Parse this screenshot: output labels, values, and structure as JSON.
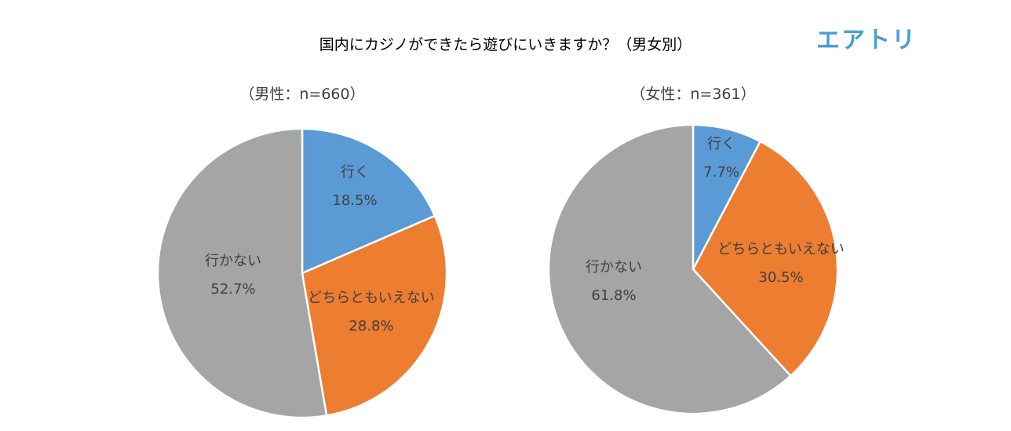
{
  "title": "国内にカジノができたら遊びにいきますか？（男女別）",
  "logo_text": "エアトリ",
  "colors": {
    "行く": "#5b9bd5",
    "どちらともいえない": "#ed7d31",
    "行かない": "#a5a5a5"
  },
  "chart_data": [
    {
      "type": "pie",
      "subtitle": "（男性：n=660）",
      "categories": [
        "行く",
        "どちらともいえない",
        "行かない"
      ],
      "values": [
        18.5,
        28.8,
        52.7
      ],
      "labels": [
        "18.5%",
        "28.8%",
        "52.7%"
      ],
      "start": "12 o'clock",
      "direction": "clockwise"
    },
    {
      "type": "pie",
      "subtitle": "（女性：n=361）",
      "categories": [
        "行く",
        "どちらともいえない",
        "行かない"
      ],
      "values": [
        7.7,
        30.5,
        61.8
      ],
      "labels": [
        "7.7%",
        "30.5%",
        "61.8%"
      ],
      "start": "12 o'clock",
      "direction": "clockwise"
    }
  ]
}
